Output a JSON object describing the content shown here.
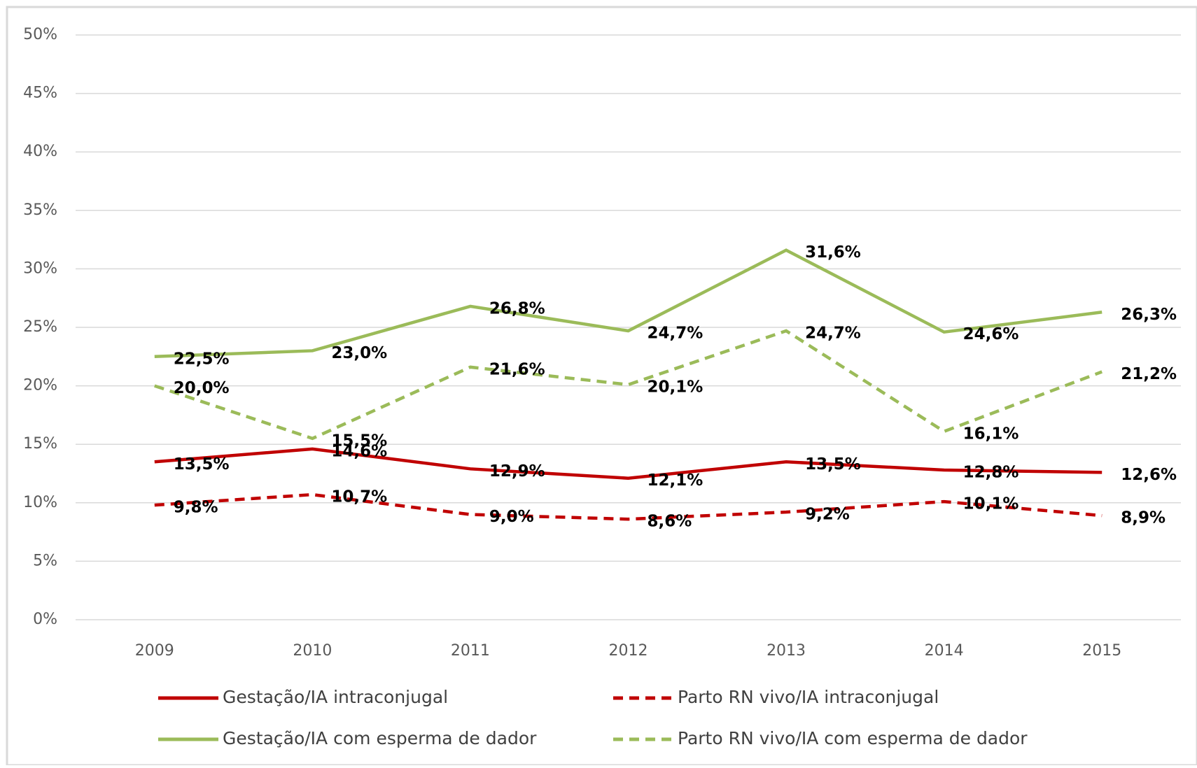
{
  "chart_data": {
    "type": "line",
    "categories": [
      "2009",
      "2010",
      "2011",
      "2012",
      "2013",
      "2014",
      "2015"
    ],
    "ylim": [
      0,
      50
    ],
    "yticks": [
      {
        "value": 0,
        "label": "0%"
      },
      {
        "value": 5,
        "label": "5%"
      },
      {
        "value": 10,
        "label": "10%"
      },
      {
        "value": 15,
        "label": "15%"
      },
      {
        "value": 20,
        "label": "20%"
      },
      {
        "value": 25,
        "label": "25%"
      },
      {
        "value": 30,
        "label": "30%"
      },
      {
        "value": 35,
        "label": "35%"
      },
      {
        "value": 40,
        "label": "40%"
      },
      {
        "value": 45,
        "label": "45%"
      },
      {
        "value": 50,
        "label": "50%"
      }
    ],
    "grid": true,
    "legend": "bottom",
    "series": [
      {
        "name": "Gestação/IA intraconjugal",
        "color": "#c00000",
        "dashed": false,
        "values": [
          13.5,
          14.6,
          12.9,
          12.1,
          13.5,
          12.8,
          12.6
        ],
        "value_labels": [
          "13,5%",
          "14,6%",
          "12,9%",
          "12,1%",
          "13,5%",
          "12,8%",
          "12,6%"
        ]
      },
      {
        "name": "Parto RN vivo/IA intraconjugal",
        "color": "#c00000",
        "dashed": true,
        "values": [
          9.8,
          10.7,
          9.0,
          8.6,
          9.2,
          10.1,
          8.9
        ],
        "value_labels": [
          "9,8%",
          "10,7%",
          "9,0%",
          "8,6%",
          "9,2%",
          "10,1%",
          "8,9%"
        ]
      },
      {
        "name": "Gestação/IA com esperma de dador",
        "color": "#9bbb59",
        "dashed": false,
        "values": [
          22.5,
          23.0,
          26.8,
          24.7,
          31.6,
          24.6,
          26.3
        ],
        "value_labels": [
          "22,5%",
          "23,0%",
          "26,8%",
          "24,7%",
          "31,6%",
          "24,6%",
          "26,3%"
        ]
      },
      {
        "name": "Parto RN vivo/IA com esperma de dador",
        "color": "#9bbb59",
        "dashed": true,
        "values": [
          20.0,
          15.5,
          21.6,
          20.1,
          24.7,
          16.1,
          21.2
        ],
        "value_labels": [
          "20,0%",
          "15,5%",
          "21,6%",
          "20,1%",
          "24,7%",
          "16,1%",
          "21,2%"
        ]
      }
    ]
  }
}
